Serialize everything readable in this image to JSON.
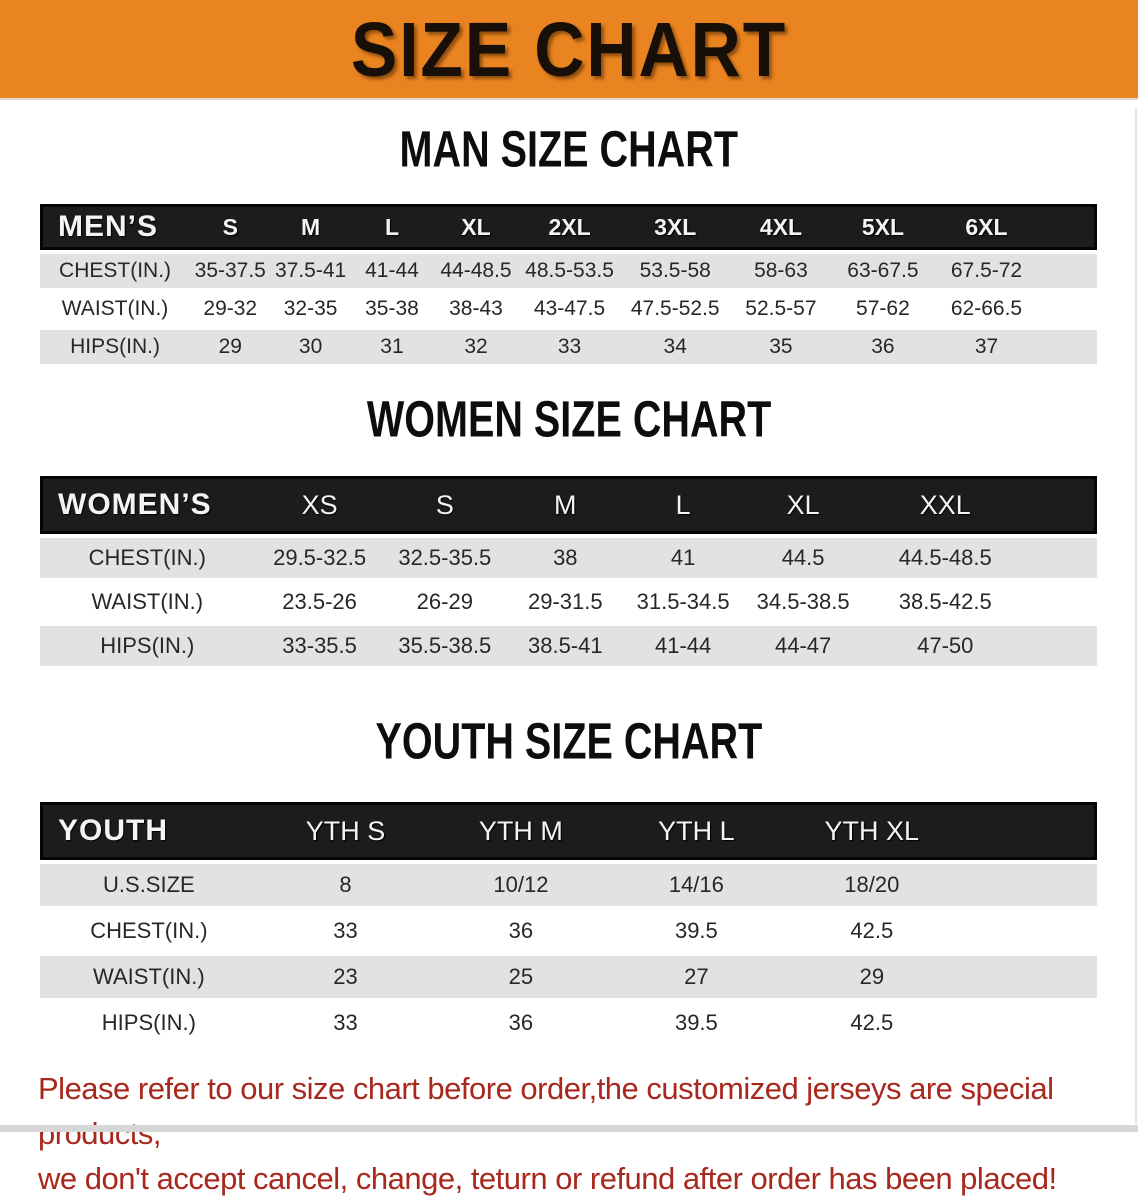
{
  "banner": {
    "title": "SIZE CHART"
  },
  "colors": {
    "banner_bg": "#EA8420",
    "header_bar": "#1C1C1C",
    "row_stripe": "#E2E2E2",
    "footer_text": "#A8281E"
  },
  "sections": {
    "men": {
      "heading": "MAN SIZE CHART",
      "table": {
        "header": [
          "MEN’S",
          "S",
          "M",
          "L",
          "XL",
          "2XL",
          "3XL",
          "4XL",
          "5XL",
          "6XL"
        ],
        "rows": [
          [
            "CHEST(IN.)",
            "35-37.5",
            "37.5-41",
            "41-44",
            "44-48.5",
            "48.5-53.5",
            "53.5-58",
            "58-63",
            "63-67.5",
            "67.5-72"
          ],
          [
            "WAIST(IN.)",
            "29-32",
            "32-35",
            "35-38",
            "38-43",
            "43-47.5",
            "47.5-52.5",
            "52.5-57",
            "57-62",
            "62-66.5"
          ],
          [
            "HIPS(IN.)",
            "29",
            "30",
            "31",
            "32",
            "33",
            "34",
            "35",
            "36",
            "37"
          ]
        ]
      }
    },
    "women": {
      "heading": "WOMEN SIZE CHART",
      "table": {
        "header": [
          "WOMEN’S",
          "XS",
          "S",
          "M",
          "L",
          "XL",
          "XXL"
        ],
        "rows": [
          [
            "CHEST(IN.)",
            "29.5-32.5",
            "32.5-35.5",
            "38",
            "41",
            "44.5",
            "44.5-48.5"
          ],
          [
            "WAIST(IN.)",
            "23.5-26",
            "26-29",
            "29-31.5",
            "31.5-34.5",
            "34.5-38.5",
            "38.5-42.5"
          ],
          [
            "HIPS(IN.)",
            "33-35.5",
            "35.5-38.5",
            "38.5-41",
            "41-44",
            "44-47",
            "47-50"
          ]
        ]
      }
    },
    "youth": {
      "heading": "YOUTH SIZE CHART",
      "table": {
        "header": [
          "YOUTH",
          "YTH S",
          "YTH M",
          "YTH L",
          "YTH XL"
        ],
        "rows": [
          [
            "U.S.SIZE",
            "8",
            "10/12",
            "14/16",
            "18/20"
          ],
          [
            "CHEST(IN.)",
            "33",
            "36",
            "39.5",
            "42.5"
          ],
          [
            "WAIST(IN.)",
            "23",
            "25",
            "27",
            "29"
          ],
          [
            "HIPS(IN.)",
            "33",
            "36",
            "39.5",
            "42.5"
          ]
        ]
      }
    }
  },
  "footer": {
    "line1": "Please refer to our size chart before order,the customized jerseys are special products,",
    "line2": "we don't accept cancel, change, teturn or refund after order has been placed!"
  }
}
